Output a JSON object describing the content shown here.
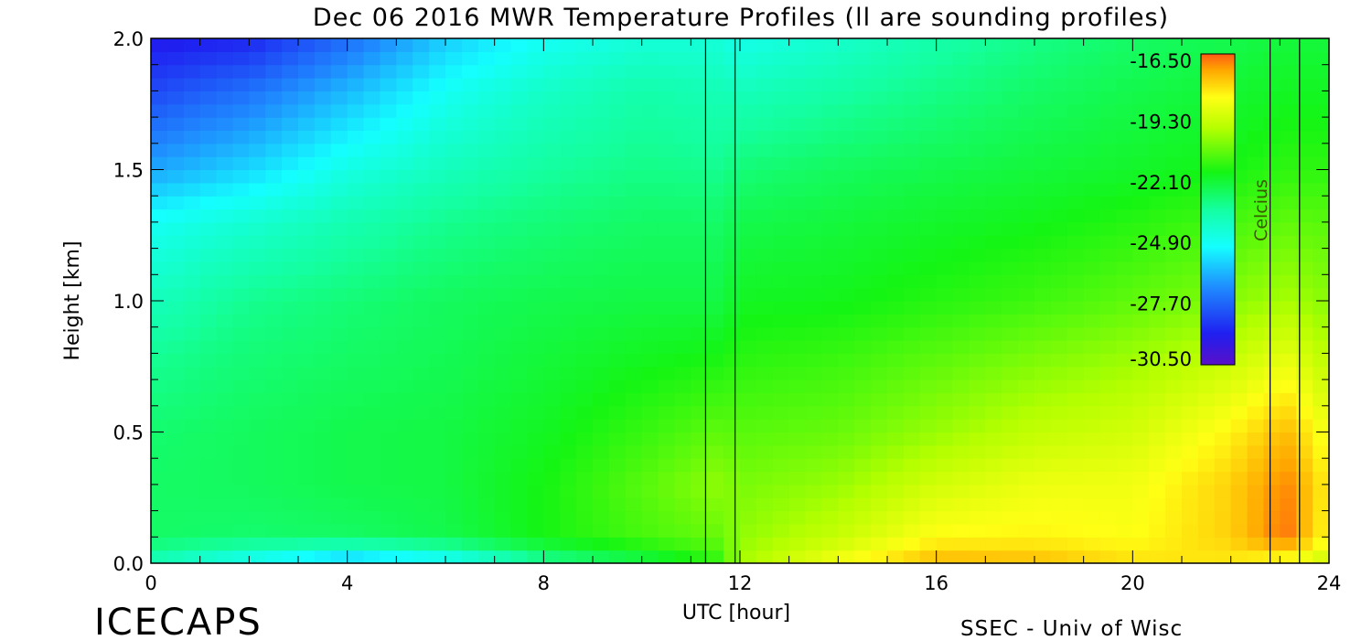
{
  "chart_data": {
    "type": "heatmap",
    "title": "Dec 06 2016 MWR Temperature Profiles (ll are sounding profiles)",
    "xlabel": "UTC [hour]",
    "ylabel": "Height [km]",
    "xlim": [
      0,
      24
    ],
    "ylim": [
      0,
      2.0
    ],
    "x_ticks": [
      "0",
      "4",
      "8",
      "12",
      "16",
      "20",
      "24"
    ],
    "y_ticks": [
      "0.0",
      "0.5",
      "1.0",
      "1.5",
      "2.0"
    ],
    "sounding_times_utc": [
      11.3,
      11.9,
      22.8,
      23.4
    ],
    "colorbar": {
      "label": "Celcius",
      "ticks": [
        "-16.50",
        "-19.30",
        "-22.10",
        "-24.90",
        "-27.70",
        "-30.50"
      ],
      "range": [
        -30.5,
        -16.5
      ]
    },
    "temperature_grid": {
      "description_hours": [
        0,
        2,
        4,
        6,
        8,
        10,
        11.6,
        12,
        14,
        16,
        18,
        20,
        22,
        23.1,
        24
      ],
      "heights_km": [
        0.0,
        0.1,
        0.3,
        0.5,
        0.8,
        1.0,
        1.3,
        1.5,
        1.8,
        2.0
      ],
      "values_celsius": [
        [
          -24.0,
          -25.2,
          -26.5,
          -25.5,
          -23.5,
          -22.6,
          -21.5,
          -20.0,
          -18.6,
          -17.4,
          -17.5,
          -18.0,
          -18.2,
          -18.8,
          -19.5
        ],
        [
          -22.8,
          -22.9,
          -22.8,
          -22.5,
          -21.8,
          -21.2,
          -20.8,
          -20.3,
          -19.5,
          -18.4,
          -18.3,
          -18.5,
          -17.8,
          -16.7,
          -18.5
        ],
        [
          -22.8,
          -22.7,
          -22.5,
          -22.4,
          -21.8,
          -21.0,
          -20.3,
          -20.6,
          -20.2,
          -19.3,
          -18.8,
          -18.7,
          -17.8,
          -16.9,
          -18.3
        ],
        [
          -22.9,
          -22.7,
          -22.5,
          -22.4,
          -22.0,
          -21.4,
          -20.9,
          -21.0,
          -20.8,
          -20.2,
          -19.6,
          -19.3,
          -18.3,
          -17.5,
          -18.8
        ],
        [
          -23.4,
          -23.0,
          -22.8,
          -22.6,
          -22.3,
          -22.0,
          -21.8,
          -21.6,
          -21.4,
          -21.0,
          -20.6,
          -20.2,
          -19.6,
          -19.0,
          -19.8
        ],
        [
          -24.0,
          -23.3,
          -23.0,
          -22.7,
          -22.5,
          -22.4,
          -22.4,
          -22.0,
          -21.9,
          -21.6,
          -21.3,
          -20.9,
          -20.4,
          -20.0,
          -20.4
        ],
        [
          -25.0,
          -24.4,
          -23.8,
          -23.3,
          -23.0,
          -22.8,
          -22.8,
          -22.5,
          -22.3,
          -22.1,
          -21.9,
          -21.6,
          -21.2,
          -20.9,
          -21.0
        ],
        [
          -26.6,
          -25.8,
          -24.7,
          -24.0,
          -23.5,
          -23.2,
          -23.3,
          -23.0,
          -22.7,
          -22.5,
          -22.3,
          -22.1,
          -21.8,
          -21.5,
          -21.5
        ],
        [
          -28.3,
          -27.5,
          -26.3,
          -25.0,
          -24.2,
          -23.7,
          -23.9,
          -24.0,
          -23.6,
          -23.2,
          -22.8,
          -22.5,
          -22.2,
          -22.0,
          -22.0
        ],
        [
          -29.3,
          -29.0,
          -27.6,
          -26.0,
          -25.0,
          -24.5,
          -24.5,
          -24.8,
          -24.3,
          -23.7,
          -23.2,
          -22.8,
          -22.5,
          -22.3,
          -22.3
        ]
      ]
    }
  },
  "footer": {
    "brand": "ICECAPS",
    "credit": "SSEC - Univ of Wisc"
  }
}
